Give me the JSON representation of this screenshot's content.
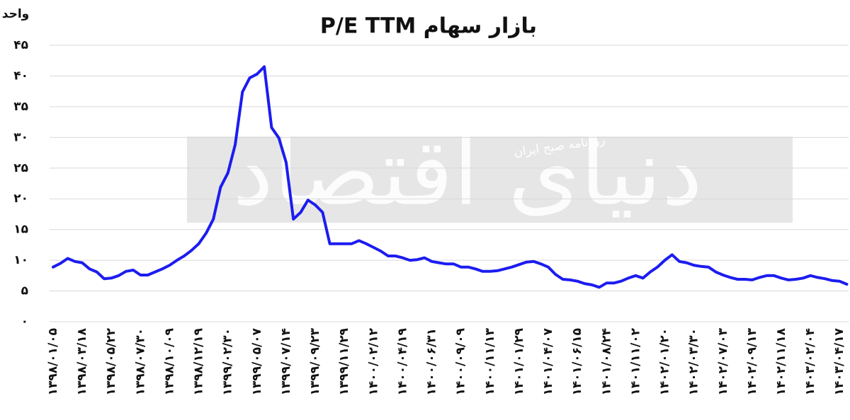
{
  "chart_data": {
    "type": "line",
    "title": "P/E TTM بازار سهام",
    "y_label": "واحد",
    "watermark": "دنیای اقتصاد",
    "watermark_subtitle": "روزنامه صبح ایران",
    "grid": true,
    "ylim": [
      0,
      45
    ],
    "yticks": [
      {
        "value": 0,
        "label": "۰"
      },
      {
        "value": 5,
        "label": "۵"
      },
      {
        "value": 10,
        "label": "۱۰"
      },
      {
        "value": 15,
        "label": "۱۵"
      },
      {
        "value": 20,
        "label": "۲۰"
      },
      {
        "value": 25,
        "label": "۲۵"
      },
      {
        "value": 30,
        "label": "۳۰"
      },
      {
        "value": 35,
        "label": "۳۵"
      },
      {
        "value": 40,
        "label": "۴۰"
      },
      {
        "value": 45,
        "label": "۴۵"
      }
    ],
    "categories": [
      "۱۳۹۸/۰۱/۰۵",
      null,
      null,
      null,
      "۱۳۹۸/۰۳/۱۸",
      null,
      null,
      null,
      "۱۳۹۸/۰۵/۲۲",
      null,
      null,
      null,
      "۱۳۹۸/۰۷/۳۰",
      null,
      null,
      null,
      "۱۳۹۸/۱۰/۰۹",
      null,
      null,
      null,
      "۱۳۹۸/۱۲/۱۹",
      null,
      null,
      null,
      "۱۳۹۹/۰۲/۳۰",
      null,
      null,
      null,
      "۱۳۹۹/۰۵/۰۷",
      null,
      null,
      null,
      "۱۳۹۹/۰۷/۱۴",
      null,
      null,
      null,
      "۱۳۹۹/۰۹/۲۳",
      null,
      null,
      null,
      "۱۳۹۹/۱۱/۲۹",
      null,
      null,
      null,
      "۱۴۰۰/۰۲/۱۲",
      null,
      null,
      null,
      "۱۴۰۰/۰۴/۱۹",
      null,
      null,
      null,
      "۱۴۰۰/۰۶/۳۱",
      null,
      null,
      null,
      "۱۴۰۰/۰۹/۰۹",
      null,
      null,
      null,
      "۱۴۰۰/۱۱/۱۳",
      null,
      null,
      null,
      "۱۴۰۱/۰۱/۲۹",
      null,
      null,
      null,
      "۱۴۰۱/۰۴/۰۷",
      null,
      null,
      null,
      "۱۴۰۱/۰۶/۱۵",
      null,
      null,
      null,
      "۱۴۰۱/۰۸/۲۴",
      null,
      null,
      null,
      "۱۴۰۱/۱۱/۰۲",
      null,
      null,
      null,
      "۱۴۰۲/۰۱/۲۰",
      null,
      null,
      null,
      "۱۴۰۲/۰۳/۳۰",
      null,
      null,
      null,
      "۱۴۰۲/۰۷/۰۳",
      null,
      null,
      null,
      "۱۴۰۲/۰۹/۱۳",
      null,
      null,
      null,
      "۱۴۰۲/۱۱/۱۸",
      null,
      null,
      null,
      "۱۴۰۳/۰۲/۰۴",
      null,
      null,
      null,
      "۱۴۰۳/۰۴/۱۷",
      null
    ],
    "series": [
      {
        "name": "P/E TTM",
        "color": "#1c1cf0",
        "values": [
          8.9,
          9.5,
          10.3,
          9.8,
          9.6,
          8.6,
          8.1,
          7.0,
          7.1,
          7.5,
          8.2,
          8.4,
          7.6,
          7.6,
          8.1,
          8.6,
          9.2,
          10.0,
          10.7,
          11.6,
          12.7,
          14.4,
          16.7,
          21.9,
          24.2,
          28.8,
          37.4,
          39.7,
          40.3,
          41.5,
          31.6,
          29.9,
          25.9,
          16.7,
          17.8,
          19.8,
          19.0,
          17.8,
          12.7,
          12.7,
          12.7,
          12.7,
          13.2,
          12.7,
          12.1,
          11.5,
          10.7,
          10.7,
          10.4,
          10.0,
          10.1,
          10.4,
          9.8,
          9.6,
          9.4,
          9.4,
          8.9,
          8.9,
          8.6,
          8.2,
          8.2,
          8.3,
          8.6,
          8.9,
          9.3,
          9.7,
          9.8,
          9.4,
          8.9,
          7.7,
          6.9,
          6.8,
          6.6,
          6.2,
          6.0,
          5.6,
          6.3,
          6.3,
          6.6,
          7.1,
          7.5,
          7.1,
          8.1,
          8.9,
          10.0,
          10.9,
          9.8,
          9.6,
          9.2,
          9.0,
          8.9,
          8.1,
          7.6,
          7.2,
          6.9,
          6.9,
          6.8,
          7.2,
          7.5,
          7.5,
          7.1,
          6.8,
          6.9,
          7.1,
          7.5,
          7.2,
          7.0,
          6.7,
          6.6,
          6.1
        ]
      }
    ]
  }
}
